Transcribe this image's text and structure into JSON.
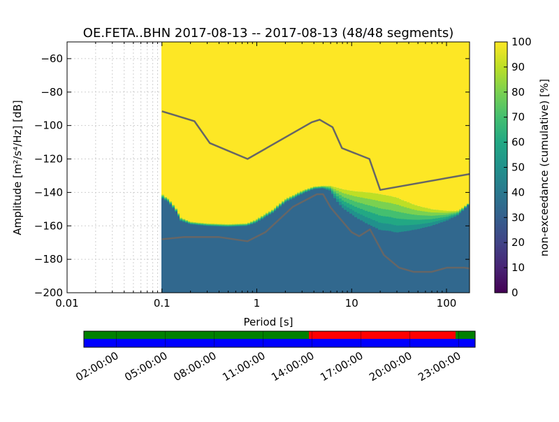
{
  "chart_data": {
    "type": "heatmap",
    "title": "OE.FETA..BHN   2017-08-13 -- 2017-08-13  (48/48 segments)",
    "xlabel": "Period [s]",
    "ylabel": "Amplitude [m²/s⁴/Hz] [dB]",
    "xscale": "log",
    "xlim": [
      0.01,
      175
    ],
    "ylim": [
      -200,
      -50
    ],
    "xticks": [
      0.01,
      0.1,
      1,
      10,
      100
    ],
    "xtick_labels": [
      "0.01",
      "0.1",
      "1",
      "10",
      "100"
    ],
    "yticks": [
      -60,
      -80,
      -100,
      -120,
      -140,
      -160,
      -180,
      -200
    ],
    "ytick_labels": [
      "−60",
      "−80",
      "−100",
      "−120",
      "−140",
      "−160",
      "−180",
      "−200"
    ],
    "data_period_start": 0.1,
    "colorbar": {
      "label": "non-exceedance (cumulative) [%]",
      "range": [
        0,
        100
      ],
      "ticks": [
        0,
        10,
        20,
        30,
        40,
        50,
        60,
        70,
        80,
        90,
        100
      ],
      "tick_labels": [
        "0",
        "10",
        "20",
        "30",
        "40",
        "50",
        "60",
        "70",
        "80",
        "90",
        "100"
      ]
    },
    "boundary_40pct": {
      "period": [
        0.1,
        0.105,
        0.12,
        0.14,
        0.16,
        0.2,
        0.3,
        0.5,
        0.8,
        1.0,
        1.5,
        2.0,
        3.0,
        4.0,
        5.0,
        6.0,
        7.0,
        8.0,
        10,
        12,
        15,
        18,
        20,
        25,
        30,
        40,
        50,
        70,
        100,
        130,
        150,
        175
      ],
      "amplitude": [
        -143,
        -144,
        -146,
        -151,
        -157,
        -159,
        -160,
        -160.5,
        -160,
        -158,
        -152,
        -146,
        -141,
        -138,
        -137.5,
        -139,
        -145,
        -149,
        -153,
        -156,
        -159,
        -161,
        -162.5,
        -163,
        -164,
        -163,
        -162,
        -160,
        -157,
        -154,
        -151,
        -147
      ]
    },
    "boundary_90pct": {
      "period": [
        0.1,
        0.105,
        0.12,
        0.14,
        0.16,
        0.2,
        0.3,
        0.5,
        0.8,
        1.0,
        1.5,
        2.0,
        3.0,
        4.0,
        5.0,
        6.0,
        7.0,
        8.0,
        10,
        12,
        15,
        18,
        20,
        25,
        30,
        40,
        50,
        70,
        100,
        130,
        150,
        175
      ],
      "amplitude": [
        -140,
        -142,
        -144,
        -149,
        -155,
        -157.5,
        -158.5,
        -159,
        -158.5,
        -156,
        -150,
        -144,
        -139,
        -136.5,
        -136,
        -136,
        -137,
        -138,
        -139,
        -139.5,
        -140,
        -140.5,
        -141,
        -142,
        -143,
        -146,
        -148,
        -150,
        -151,
        -151,
        -149,
        -146
      ]
    },
    "reference_curves": [
      {
        "name": "high-noise model",
        "period": [
          0.1,
          0.22,
          0.32,
          0.8,
          3.8,
          4.6,
          6.3,
          7.9,
          15.4,
          20,
          175
        ],
        "amplitude": [
          -91.5,
          -97.4,
          -110.5,
          -120,
          -98,
          -96.5,
          -101,
          -113.5,
          -120,
          -138.5,
          -129
        ]
      },
      {
        "name": "low-noise model",
        "period": [
          0.1,
          0.17,
          0.4,
          0.8,
          1.24,
          2.4,
          4.3,
          5.0,
          6.0,
          10.0,
          12.0,
          15.6,
          21.9,
          31.6,
          45.0,
          70.0,
          101,
          154,
          175
        ],
        "amplitude": [
          -168,
          -166.7,
          -166.7,
          -169.2,
          -163.7,
          -148.6,
          -141.1,
          -141.1,
          -149.0,
          -163.8,
          -166.2,
          -162.1,
          -177.5,
          -185.0,
          -187.5,
          -187.5,
          -185.0,
          -185.0,
          -185.5
        ]
      }
    ],
    "timeline": {
      "tick_labels": [
        "02:00:00",
        "05:00:00",
        "08:00:00",
        "11:00:00",
        "14:00:00",
        "17:00:00",
        "20:00:00",
        "23:00:00"
      ],
      "tick_hours": [
        2,
        5,
        8,
        11,
        14,
        17,
        20,
        23
      ],
      "range_hours": [
        0,
        24
      ],
      "top_track": [
        {
          "start_hour": 0,
          "end_hour": 13.8,
          "color": "#008000"
        },
        {
          "start_hour": 13.8,
          "end_hour": 22.8,
          "color": "#ff0000"
        },
        {
          "start_hour": 22.8,
          "end_hour": 24,
          "color": "#008000"
        }
      ],
      "bottom_track": [
        {
          "start_hour": 0,
          "end_hour": 24,
          "color": "#0000ff"
        }
      ]
    },
    "colors": {
      "saturated": "#fde725",
      "dominant": "#31688e",
      "model_curve": "#666666",
      "colormap": [
        "#440154",
        "#482475",
        "#414487",
        "#355f8d",
        "#2a788e",
        "#21918c",
        "#22a884",
        "#44bf70",
        "#7ad151",
        "#bddf26",
        "#fde725"
      ]
    }
  }
}
